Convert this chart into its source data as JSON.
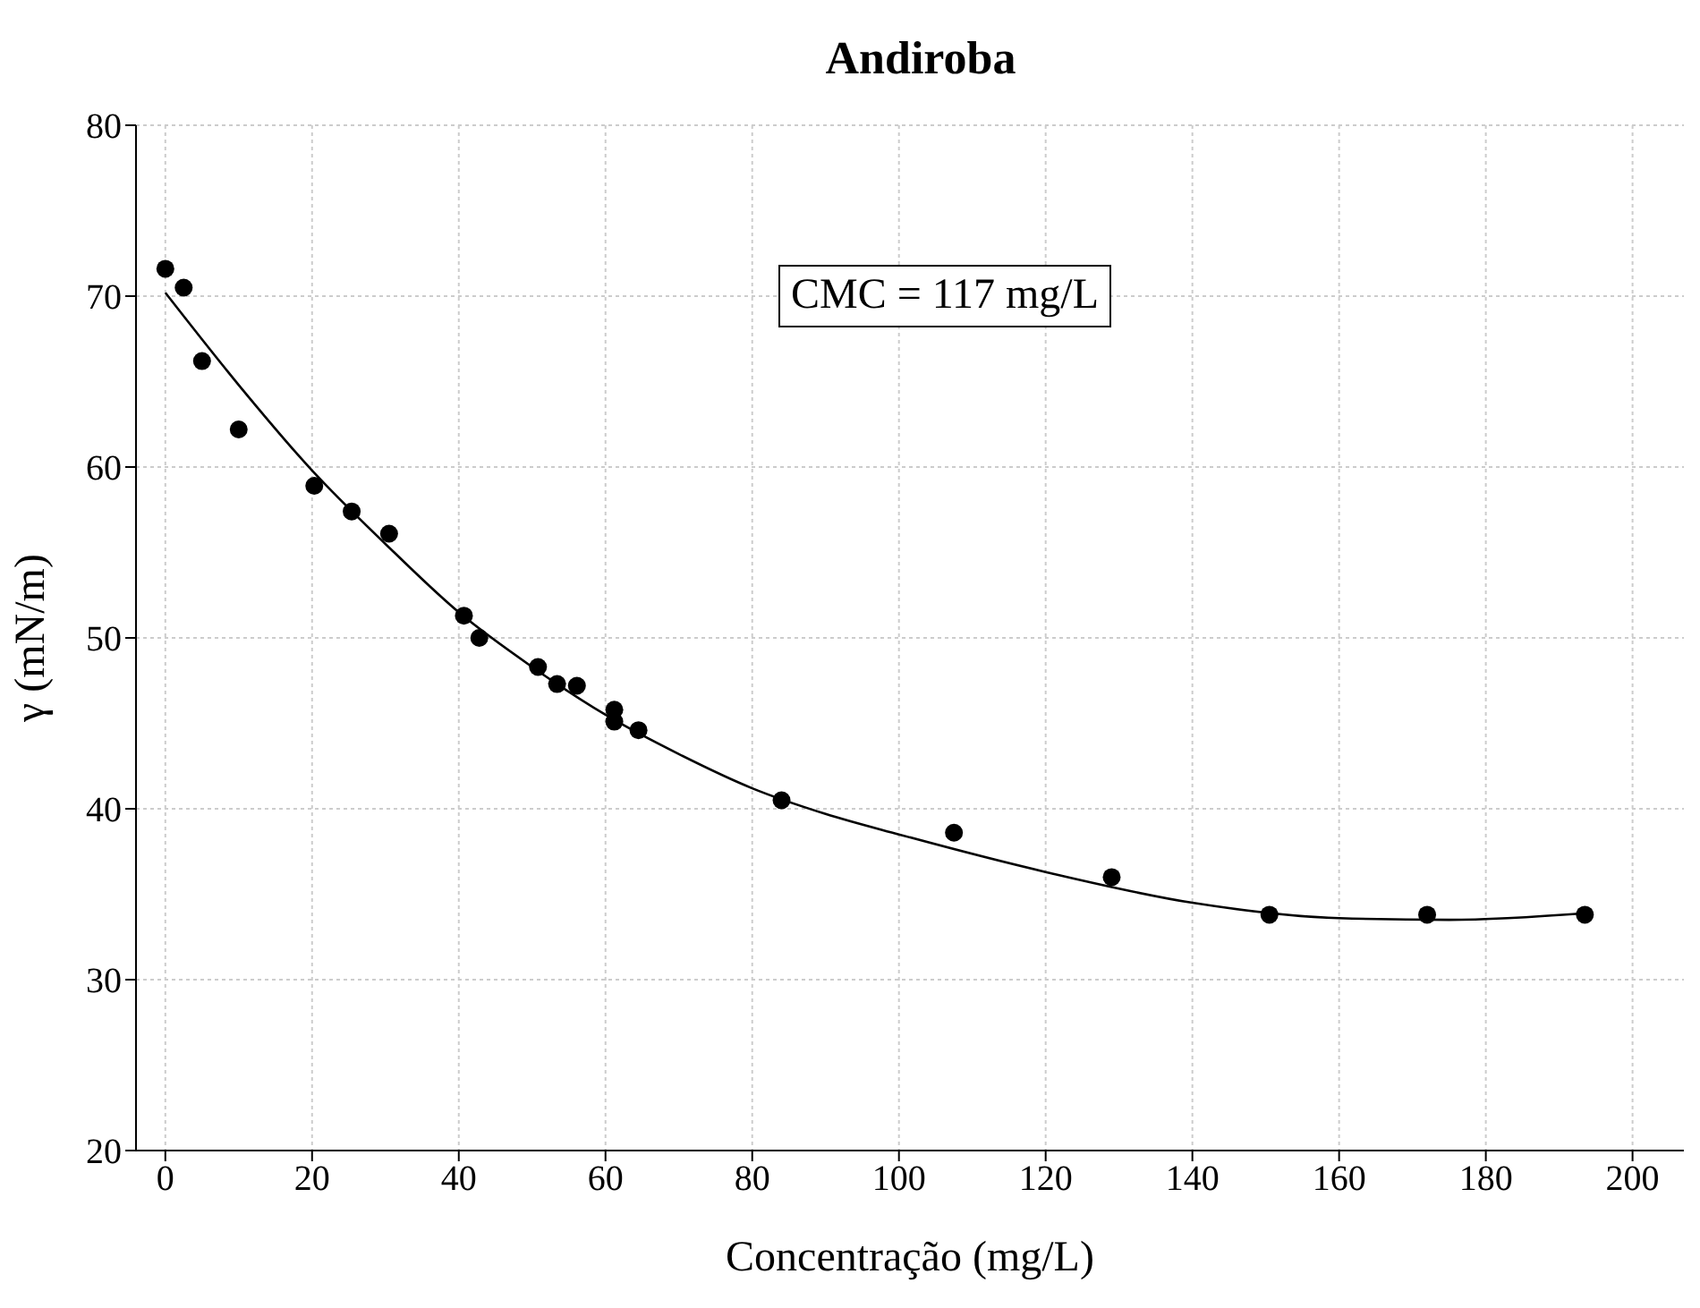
{
  "chart_data": {
    "type": "scatter",
    "title": "Andiroba",
    "xlabel": "Concentração (mg/L)",
    "ylabel": "γ (mN/m)",
    "annotations": [
      "CMC = 117 mg/L"
    ],
    "xlim": [
      -4,
      207
    ],
    "xticks": [
      0,
      20,
      40,
      60,
      80,
      100,
      120,
      140,
      160,
      180,
      200
    ],
    "ylim": [
      20,
      80
    ],
    "yticks": [
      20,
      30,
      40,
      50,
      60,
      70,
      80
    ],
    "grid": true,
    "series": [
      {
        "color": "#000000",
        "marker": "circle",
        "x": [
          0,
          2.5,
          5,
          10,
          20.3,
          25.4,
          30.5,
          40.7,
          42.8,
          50.8,
          53.4,
          56.1,
          61.2,
          61.2,
          64.5,
          84,
          107.5,
          129,
          150.5,
          172,
          193.5
        ],
        "values": [
          71.6,
          70.5,
          66.2,
          62.2,
          58.9,
          57.4,
          56.1,
          51.3,
          50.0,
          48.3,
          47.3,
          47.2,
          45.8,
          45.1,
          44.6,
          40.5,
          38.6,
          36.0,
          33.8,
          33.8,
          33.8
        ]
      },
      {
        "type": "line",
        "color": "#000000",
        "marker": "none",
        "line_style": "solid",
        "x": [
          0,
          10,
          20,
          30,
          40,
          50,
          60,
          70,
          80,
          90,
          100,
          120,
          140,
          160,
          175,
          194
        ],
        "values": [
          70.2,
          64.8,
          59.8,
          55.5,
          51.5,
          48.3,
          45.5,
          43.2,
          41.2,
          39.7,
          38.5,
          36.3,
          34.5,
          33.6,
          33.5,
          33.9
        ]
      }
    ]
  }
}
